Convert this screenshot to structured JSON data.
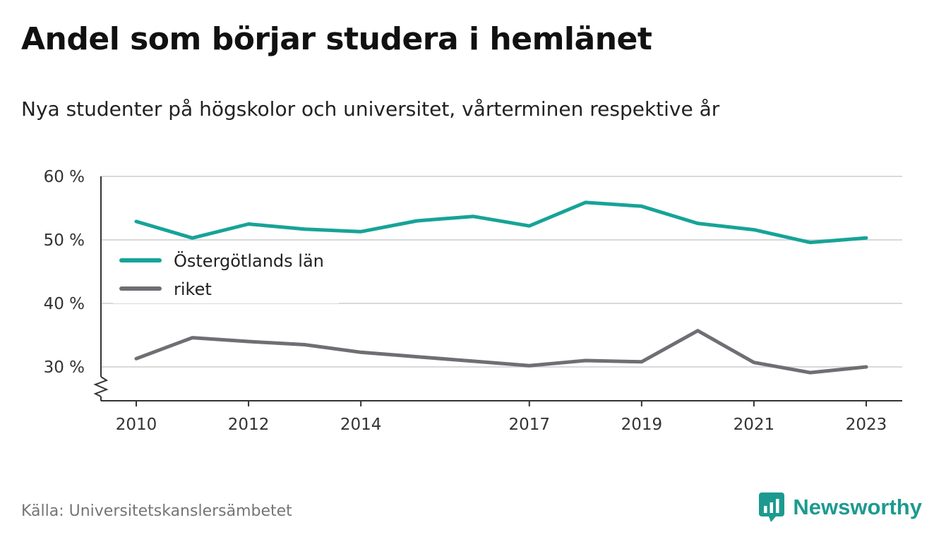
{
  "title": "Andel som börjar studera i hemlänet",
  "subtitle": "Nya studenter på högskolor och universitet, vårterminen respektive år",
  "source": "Källa: Universitetskanslersämbetet",
  "brand": {
    "name": "Newsworthy",
    "icon": "newsworthy-logo-icon"
  },
  "colors": {
    "ostergotland": "#17a398",
    "riket": "#6f6e73",
    "grid": "#d9d9d9",
    "axis": "#333333",
    "brand": "#1d9a8f"
  },
  "chart_data": {
    "type": "line",
    "x": [
      2010,
      2011,
      2012,
      2013,
      2014,
      2015,
      2016,
      2017,
      2018,
      2019,
      2020,
      2021,
      2022,
      2023
    ],
    "x_ticks": [
      2010,
      2012,
      2014,
      2017,
      2019,
      2021,
      2023
    ],
    "y_ticks": [
      30,
      40,
      50,
      60
    ],
    "y_tick_labels": [
      "30 %",
      "40 %",
      "50 %",
      "60 %"
    ],
    "ylim": [
      25,
      60
    ],
    "y_axis_break": true,
    "grid": true,
    "legend_placement": "left",
    "series": [
      {
        "name": "Östergötlands län",
        "color": "#17a398",
        "values": [
          52.9,
          50.3,
          52.5,
          51.7,
          51.3,
          53.0,
          53.7,
          52.2,
          55.9,
          55.3,
          52.6,
          51.6,
          49.6,
          50.3
        ]
      },
      {
        "name": "riket",
        "color": "#6f6e73",
        "values": [
          31.3,
          34.6,
          34.0,
          33.5,
          32.3,
          31.6,
          30.9,
          30.2,
          31.0,
          30.8,
          35.7,
          30.7,
          29.1,
          30.0
        ]
      }
    ]
  }
}
